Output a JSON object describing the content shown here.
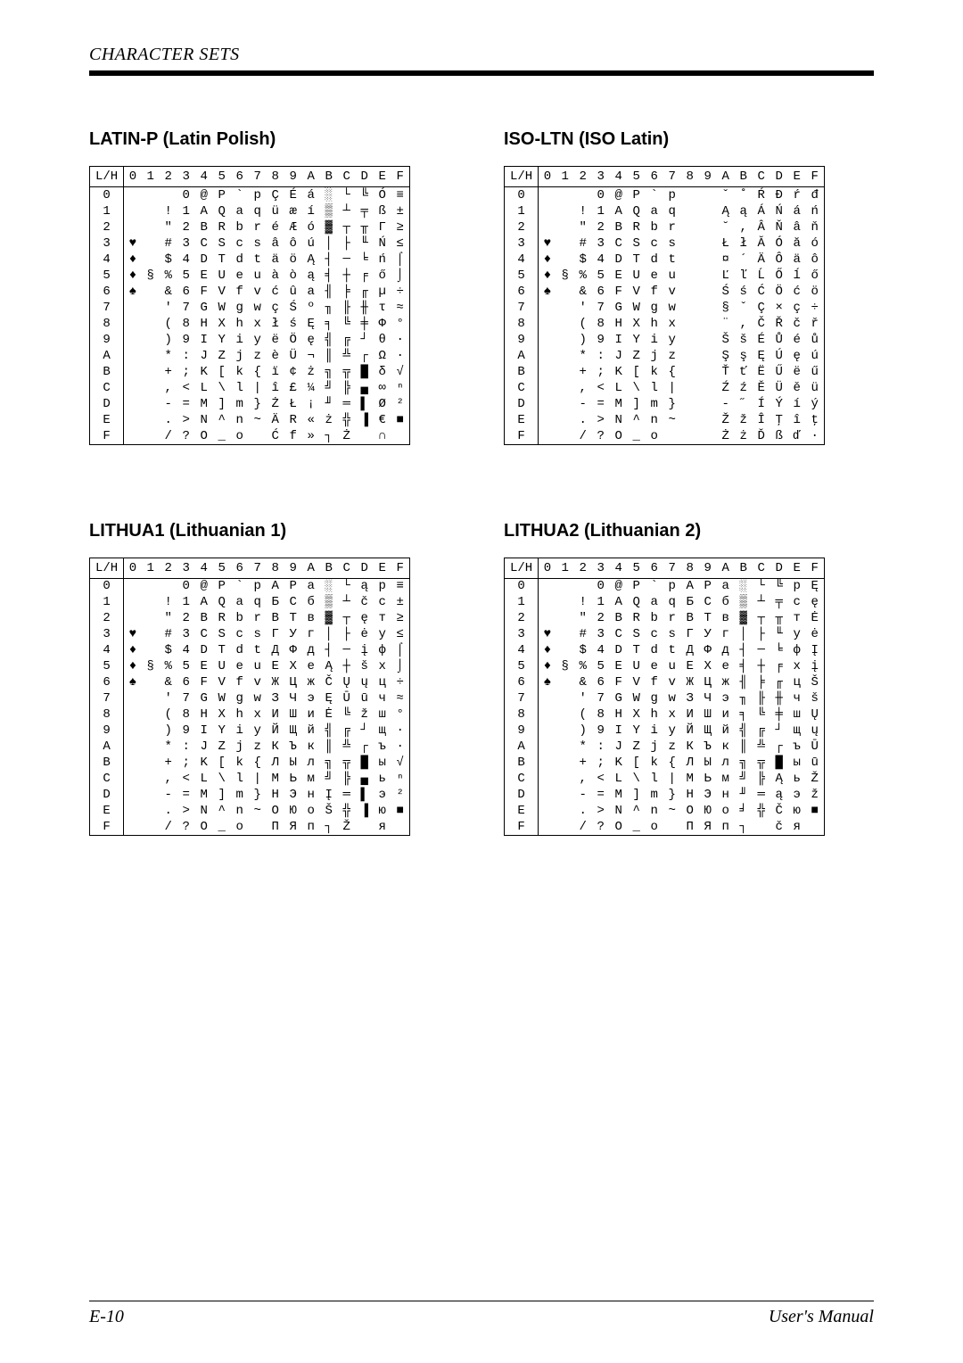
{
  "header": "CHARACTER SETS",
  "footer_left": "E-10",
  "footer_right": "User's Manual",
  "col_headers": [
    "0",
    "1",
    "2",
    "3",
    "4",
    "5",
    "6",
    "7",
    "8",
    "9",
    "A",
    "B",
    "C",
    "D",
    "E",
    "F"
  ],
  "row_headers": [
    "0",
    "1",
    "2",
    "3",
    "4",
    "5",
    "6",
    "7",
    "8",
    "9",
    "A",
    "B",
    "C",
    "D",
    "E",
    "F"
  ],
  "corner": "L/H",
  "tables": [
    {
      "title": "LATIN-P (Latin Polish)",
      "grid": [
        [
          " ",
          " ",
          " ",
          "0",
          "@",
          "P",
          "`",
          "p",
          "Ç",
          "É",
          "á",
          "░",
          "└",
          "╚",
          "Ó",
          "≡"
        ],
        [
          " ",
          " ",
          "!",
          "1",
          "A",
          "Q",
          "a",
          "q",
          "ü",
          "æ",
          "í",
          "▒",
          "┴",
          "╤",
          "ß",
          "±"
        ],
        [
          " ",
          " ",
          "\"",
          "2",
          "B",
          "R",
          "b",
          "r",
          "é",
          "Æ",
          "ó",
          "▓",
          "┬",
          "╥",
          "Γ",
          "≥"
        ],
        [
          "♥",
          " ",
          "#",
          "3",
          "C",
          "S",
          "c",
          "s",
          "â",
          "ô",
          "ú",
          "│",
          "├",
          "╙",
          "Ń",
          "≤"
        ],
        [
          "♦",
          " ",
          "$",
          "4",
          "D",
          "T",
          "d",
          "t",
          "ä",
          "ö",
          "Ą",
          "┤",
          "─",
          "╘",
          "ń",
          "⌠"
        ],
        [
          "♦",
          "§",
          "%",
          "5",
          "E",
          "U",
          "e",
          "u",
          "à",
          "ò",
          "ą",
          "╡",
          "┼",
          "╒",
          "ő",
          "⌡"
        ],
        [
          "♠",
          " ",
          "&",
          "6",
          "F",
          "V",
          "f",
          "v",
          "ć",
          "û",
          "a",
          "╢",
          "╞",
          "╓",
          "µ",
          "÷"
        ],
        [
          " ",
          " ",
          "'",
          "7",
          "G",
          "W",
          "g",
          "w",
          "ç",
          "Ś",
          "º",
          "╖",
          "╟",
          "╫",
          "τ",
          "≈"
        ],
        [
          " ",
          " ",
          "(",
          "8",
          "H",
          "X",
          "h",
          "x",
          "ł",
          "ś",
          "Ę",
          "╕",
          "╚",
          "╪",
          "Φ",
          "°"
        ],
        [
          " ",
          " ",
          ")",
          "9",
          "I",
          "Y",
          "i",
          "y",
          "ë",
          "Ö",
          "ę",
          "╣",
          "╔",
          "┘",
          "θ",
          "·"
        ],
        [
          " ",
          " ",
          "*",
          ":",
          "J",
          "Z",
          "j",
          "z",
          "è",
          "Ü",
          "¬",
          "║",
          "╩",
          "┌",
          "Ω",
          "·"
        ],
        [
          " ",
          " ",
          "+",
          ";",
          "K",
          "[",
          "k",
          "{",
          "ï",
          "¢",
          "ż",
          "╗",
          "╦",
          "█",
          "δ",
          "√"
        ],
        [
          " ",
          " ",
          ",",
          "<",
          "L",
          "\\",
          "l",
          "|",
          "î",
          "£",
          "¼",
          "╝",
          "╠",
          "▄",
          "∞",
          "ⁿ"
        ],
        [
          " ",
          " ",
          "-",
          "=",
          "M",
          "]",
          "m",
          "}",
          "Ż",
          "Ł",
          "¡",
          "╜",
          "═",
          "▌",
          "Ø",
          "²"
        ],
        [
          " ",
          " ",
          ".",
          ">",
          "N",
          "^",
          "n",
          "~",
          "Ä",
          "R",
          "«",
          "ż",
          "╬",
          "▐",
          "€",
          "■"
        ],
        [
          " ",
          " ",
          "/",
          "?",
          "O",
          "_",
          "o",
          " ",
          "Ć",
          "f",
          "»",
          "┐",
          "Ż",
          " ",
          "∩",
          " "
        ]
      ]
    },
    {
      "title": "ISO-LTN (ISO Latin)",
      "grid": [
        [
          " ",
          " ",
          " ",
          "0",
          "@",
          "P",
          "`",
          "p",
          " ",
          " ",
          "ˇ",
          "˚",
          "Ŕ",
          "Đ",
          "ŕ",
          "đ"
        ],
        [
          " ",
          " ",
          "!",
          "1",
          "A",
          "Q",
          "a",
          "q",
          " ",
          " ",
          "Ą",
          "ą",
          "Á",
          "Ń",
          "á",
          "ń"
        ],
        [
          " ",
          " ",
          "\"",
          "2",
          "B",
          "R",
          "b",
          "r",
          " ",
          " ",
          "˘",
          ",",
          "Â",
          "Ň",
          "â",
          "ň"
        ],
        [
          "♥",
          " ",
          "#",
          "3",
          "C",
          "S",
          "c",
          "s",
          " ",
          " ",
          "Ł",
          "ł",
          "Ă",
          "Ó",
          "ă",
          "ó"
        ],
        [
          "♦",
          " ",
          "$",
          "4",
          "D",
          "T",
          "d",
          "t",
          " ",
          " ",
          "¤",
          "´",
          "Ä",
          "Ô",
          "ä",
          "ô"
        ],
        [
          "♦",
          "§",
          "%",
          "5",
          "E",
          "U",
          "e",
          "u",
          " ",
          " ",
          "Ľ",
          "ľ",
          "Ĺ",
          "Ő",
          "ĺ",
          "ő"
        ],
        [
          "♠",
          " ",
          "&",
          "6",
          "F",
          "V",
          "f",
          "v",
          " ",
          " ",
          "Ś",
          "ś",
          "Ć",
          "Ö",
          "ć",
          "ö"
        ],
        [
          " ",
          " ",
          "'",
          "7",
          "G",
          "W",
          "g",
          "w",
          " ",
          " ",
          "§",
          "ˇ",
          "Ç",
          "×",
          "ç",
          "÷"
        ],
        [
          " ",
          " ",
          "(",
          "8",
          "H",
          "X",
          "h",
          "x",
          " ",
          " ",
          "¨",
          ",",
          "Č",
          "Ř",
          "č",
          "ř"
        ],
        [
          " ",
          " ",
          ")",
          "9",
          "I",
          "Y",
          "i",
          "y",
          " ",
          " ",
          "Š",
          "š",
          "É",
          "Ů",
          "é",
          "ů"
        ],
        [
          " ",
          " ",
          "*",
          ":",
          "J",
          "Z",
          "j",
          "z",
          " ",
          " ",
          "Ş",
          "ş",
          "Ę",
          "Ú",
          "ę",
          "ú"
        ],
        [
          " ",
          " ",
          "+",
          ";",
          "K",
          "[",
          "k",
          "{",
          " ",
          " ",
          "Ť",
          "ť",
          "Ë",
          "Ű",
          "ë",
          "ű"
        ],
        [
          " ",
          " ",
          ",",
          "<",
          "L",
          "\\",
          "l",
          "|",
          " ",
          " ",
          "Ź",
          "ź",
          "Ě",
          "Ü",
          "ě",
          "ü"
        ],
        [
          " ",
          " ",
          "-",
          "=",
          "M",
          "]",
          "m",
          "}",
          " ",
          " ",
          "-",
          "˝",
          "Í",
          "Ý",
          "í",
          "ý"
        ],
        [
          " ",
          " ",
          ".",
          ">",
          "N",
          "^",
          "n",
          "~",
          " ",
          " ",
          "Ž",
          "ž",
          "Î",
          "Ţ",
          "î",
          "ţ"
        ],
        [
          " ",
          " ",
          "/",
          "?",
          "O",
          "_",
          "o",
          " ",
          " ",
          " ",
          "Ż",
          "ż",
          "Ď",
          "ß",
          "ď",
          "·"
        ]
      ]
    },
    {
      "title": "LITHUA1 (Lithuanian 1)",
      "grid": [
        [
          " ",
          " ",
          " ",
          "0",
          "@",
          "P",
          "`",
          "p",
          "А",
          "Р",
          "а",
          "░",
          "└",
          "ą",
          "р",
          "≡"
        ],
        [
          " ",
          " ",
          "!",
          "1",
          "A",
          "Q",
          "a",
          "q",
          "Б",
          "С",
          "б",
          "▒",
          "┴",
          "č",
          "с",
          "±"
        ],
        [
          " ",
          " ",
          "\"",
          "2",
          "B",
          "R",
          "b",
          "r",
          "В",
          "Т",
          "в",
          "▓",
          "┬",
          "ę",
          "т",
          "≥"
        ],
        [
          "♥",
          " ",
          "#",
          "3",
          "C",
          "S",
          "c",
          "s",
          "Г",
          "У",
          "г",
          "│",
          "├",
          "ė",
          "у",
          "≤"
        ],
        [
          "♦",
          " ",
          "$",
          "4",
          "D",
          "T",
          "d",
          "t",
          "Д",
          "Ф",
          "д",
          "┤",
          "─",
          "į",
          "ф",
          "⌠"
        ],
        [
          "♦",
          "§",
          "%",
          "5",
          "E",
          "U",
          "e",
          "u",
          "Е",
          "Х",
          "е",
          "Ą",
          "┼",
          "š",
          "х",
          "⌡"
        ],
        [
          "♠",
          " ",
          "&",
          "6",
          "F",
          "V",
          "f",
          "v",
          "Ж",
          "Ц",
          "ж",
          "Č",
          "Ų",
          "ų",
          "ц",
          "÷"
        ],
        [
          " ",
          " ",
          "'",
          "7",
          "G",
          "W",
          "g",
          "w",
          "З",
          "Ч",
          "э",
          "Ę",
          "Ū",
          "ū",
          "ч",
          "≈"
        ],
        [
          " ",
          " ",
          "(",
          "8",
          "H",
          "X",
          "h",
          "x",
          "И",
          "Ш",
          "и",
          "Ė",
          "╚",
          "ž",
          "ш",
          "°"
        ],
        [
          " ",
          " ",
          ")",
          "9",
          "I",
          "Y",
          "i",
          "y",
          "Й",
          "Щ",
          "й",
          "╣",
          "╔",
          "┘",
          "щ",
          "·"
        ],
        [
          " ",
          " ",
          "*",
          ":",
          "J",
          "Z",
          "j",
          "z",
          "К",
          "Ъ",
          "к",
          "║",
          "╩",
          "┌",
          "ъ",
          "·"
        ],
        [
          " ",
          " ",
          "+",
          ";",
          "K",
          "[",
          "k",
          "{",
          "Л",
          "Ы",
          "л",
          "╗",
          "╦",
          "█",
          "ы",
          "√"
        ],
        [
          " ",
          " ",
          ",",
          "<",
          "L",
          "\\",
          "l",
          "|",
          "М",
          "Ь",
          "м",
          "╝",
          "╠",
          "▄",
          "ь",
          "ⁿ"
        ],
        [
          " ",
          " ",
          "-",
          "=",
          "M",
          "]",
          "m",
          "}",
          "Н",
          "Э",
          "н",
          "Į",
          "═",
          "▌",
          "э",
          "²"
        ],
        [
          " ",
          " ",
          ".",
          ">",
          "N",
          "^",
          "n",
          "~",
          "О",
          "Ю",
          "о",
          "Š",
          "╬",
          "▐",
          "ю",
          "■"
        ],
        [
          " ",
          " ",
          "/",
          "?",
          "O",
          "_",
          "o",
          " ",
          "П",
          "Я",
          "п",
          "┐",
          "Ž",
          " ",
          "я",
          " "
        ]
      ]
    },
    {
      "title": "LITHUA2 (Lithuanian 2)",
      "grid": [
        [
          " ",
          " ",
          " ",
          "0",
          "@",
          "P",
          "`",
          "p",
          "А",
          "Р",
          "а",
          "░",
          "└",
          "╚",
          "р",
          "Ę"
        ],
        [
          " ",
          " ",
          "!",
          "1",
          "A",
          "Q",
          "a",
          "q",
          "Б",
          "С",
          "б",
          "▒",
          "┴",
          "╤",
          "с",
          "ę"
        ],
        [
          " ",
          " ",
          "\"",
          "2",
          "B",
          "R",
          "b",
          "r",
          "В",
          "Т",
          "в",
          "▓",
          "┬",
          "╥",
          "т",
          "Ė"
        ],
        [
          "♥",
          " ",
          "#",
          "3",
          "C",
          "S",
          "c",
          "s",
          "Г",
          "У",
          "г",
          "│",
          "├",
          "╙",
          "у",
          "ė"
        ],
        [
          "♦",
          " ",
          "$",
          "4",
          "D",
          "T",
          "d",
          "t",
          "Д",
          "Ф",
          "д",
          "┤",
          "─",
          "╘",
          "ф",
          "Į"
        ],
        [
          "♦",
          "§",
          "%",
          "5",
          "E",
          "U",
          "e",
          "u",
          "Е",
          "Х",
          "е",
          "╡",
          "┼",
          "╒",
          "х",
          "į"
        ],
        [
          "♠",
          " ",
          "&",
          "6",
          "F",
          "V",
          "f",
          "v",
          "Ж",
          "Ц",
          "ж",
          "╢",
          "╞",
          "╓",
          "ц",
          "Š"
        ],
        [
          " ",
          " ",
          "'",
          "7",
          "G",
          "W",
          "g",
          "w",
          "З",
          "Ч",
          "э",
          "╖",
          "╟",
          "╫",
          "ч",
          "š"
        ],
        [
          " ",
          " ",
          "(",
          "8",
          "H",
          "X",
          "h",
          "x",
          "И",
          "Ш",
          "и",
          "╕",
          "╚",
          "╪",
          "ш",
          "Ų"
        ],
        [
          " ",
          " ",
          ")",
          "9",
          "I",
          "Y",
          "i",
          "y",
          "Й",
          "Щ",
          "й",
          "╣",
          "╔",
          "┘",
          "щ",
          "ų"
        ],
        [
          " ",
          " ",
          "*",
          ":",
          "J",
          "Z",
          "j",
          "z",
          "К",
          "Ъ",
          "к",
          "║",
          "╩",
          "┌",
          "ъ",
          "Ū"
        ],
        [
          " ",
          " ",
          "+",
          ";",
          "K",
          "[",
          "k",
          "{",
          "Л",
          "Ы",
          "л",
          "╗",
          "╦",
          "█",
          "ы",
          "ū"
        ],
        [
          " ",
          " ",
          ",",
          "<",
          "L",
          "\\",
          "l",
          "|",
          "М",
          "Ь",
          "м",
          "╝",
          "╠",
          "Ą",
          "ь",
          "Ž"
        ],
        [
          " ",
          " ",
          "-",
          "=",
          "M",
          "]",
          "m",
          "}",
          "Н",
          "Э",
          "н",
          "╜",
          "═",
          "ą",
          "э",
          "ž"
        ],
        [
          " ",
          " ",
          ".",
          ">",
          "N",
          "^",
          "n",
          "~",
          "О",
          "Ю",
          "о",
          "╛",
          "╬",
          "Č",
          "ю",
          "■"
        ],
        [
          " ",
          " ",
          "/",
          "?",
          "O",
          "_",
          "o",
          " ",
          "П",
          "Я",
          "п",
          "┐",
          " ",
          "č",
          "я",
          " "
        ]
      ]
    }
  ]
}
